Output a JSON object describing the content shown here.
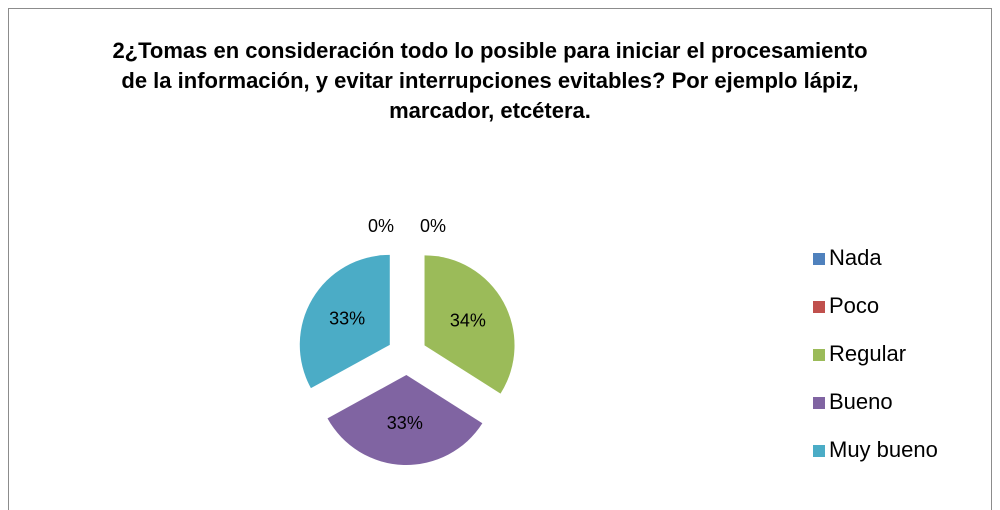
{
  "chart_data": {
    "type": "pie",
    "title": "2¿Tomas en consideración todo lo posible para iniciar el procesamiento de la información, y evitar interrupciones evitables? Por ejemplo lápiz, marcador, etcétera.",
    "categories": [
      "Nada",
      "Poco",
      "Regular",
      "Bueno",
      "Muy bueno"
    ],
    "values": [
      0,
      0,
      34,
      33,
      33
    ],
    "value_labels": [
      "0%",
      "0%",
      "34%",
      "33%",
      "33%"
    ],
    "colors": [
      "#4f81bd",
      "#c0504d",
      "#9bbb59",
      "#8064a2",
      "#4bacc6"
    ],
    "legend": "right"
  }
}
